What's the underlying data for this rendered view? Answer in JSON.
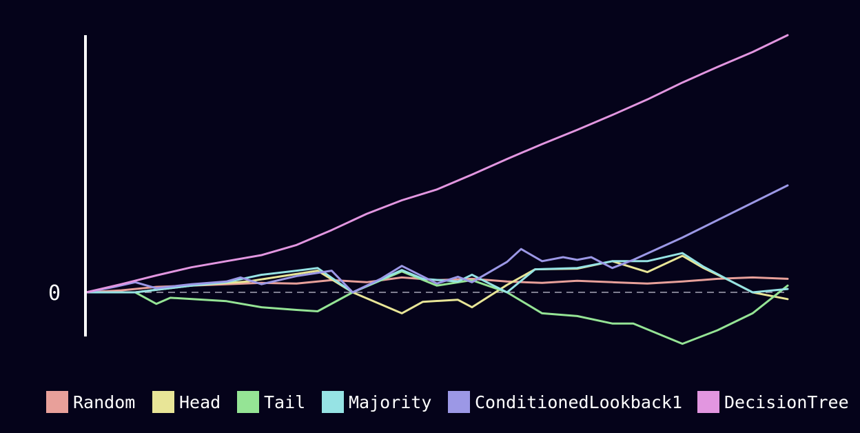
{
  "chart_data": {
    "type": "line",
    "title": "",
    "xlabel": "",
    "ylabel": "",
    "x_range": [
      0,
      100
    ],
    "ylim": [
      -8,
      46
    ],
    "y_ticks": [
      {
        "value": 0,
        "label": "0"
      }
    ],
    "zero_line": "dashed",
    "grid": false,
    "legend_position": "bottom",
    "series": [
      {
        "name": "Random",
        "color": "#e8a09a",
        "x": [
          0,
          5,
          10,
          15,
          20,
          25,
          30,
          35,
          40,
          45,
          50,
          55,
          60,
          65,
          70,
          75,
          80,
          85,
          90,
          95,
          100
        ],
        "y": [
          0,
          0.3,
          0.8,
          1.0,
          1.2,
          1.4,
          1.3,
          1.8,
          1.5,
          2.2,
          1.8,
          2.0,
          1.6,
          1.4,
          1.7,
          1.5,
          1.3,
          1.6,
          2.0,
          2.2,
          2.0
        ]
      },
      {
        "name": "Head",
        "color": "#e8e597",
        "x": [
          0,
          7,
          15,
          23,
          33,
          38,
          45,
          48,
          53,
          55,
          60,
          64,
          70,
          75,
          80,
          85,
          88,
          92,
          95,
          100
        ],
        "y": [
          0,
          0,
          1.0,
          1.6,
          3.2,
          0,
          -3.1,
          -1.4,
          -1.1,
          -2.2,
          1.1,
          3.4,
          3.5,
          4.6,
          3.0,
          5.4,
          3.6,
          1.6,
          0,
          -1.0
        ]
      },
      {
        "name": "Tail",
        "color": "#95e495",
        "x": [
          0,
          7,
          10,
          12,
          20,
          25,
          30,
          33,
          38,
          45,
          50,
          55,
          60,
          65,
          70,
          75,
          78,
          85,
          90,
          95,
          100
        ],
        "y": [
          0,
          0,
          -1.7,
          -0.8,
          -1.3,
          -2.2,
          -2.6,
          -2.8,
          0,
          3.1,
          1.0,
          1.8,
          0,
          -3.1,
          -3.5,
          -4.6,
          -4.6,
          -7.6,
          -5.6,
          -3.1,
          1.0
        ]
      },
      {
        "name": "Majority",
        "color": "#96e3e4",
        "x": [
          0,
          7,
          15,
          20,
          25,
          30,
          33,
          38,
          45,
          48,
          53,
          55,
          60,
          64,
          70,
          75,
          80,
          85,
          88,
          92,
          95,
          100
        ],
        "y": [
          0,
          0,
          1.0,
          1.5,
          2.6,
          3.2,
          3.6,
          0,
          3.3,
          2.0,
          1.6,
          2.6,
          0,
          3.4,
          3.6,
          4.6,
          4.6,
          5.8,
          3.8,
          1.6,
          0,
          0.5
        ]
      },
      {
        "name": "ConditionedLookback1",
        "color": "#9c98e6",
        "x": [
          0,
          4,
          7,
          10,
          15,
          20,
          22,
          25,
          30,
          35,
          38,
          42,
          45,
          50,
          53,
          55,
          60,
          62,
          65,
          68,
          70,
          72,
          75,
          78,
          85,
          100
        ],
        "y": [
          0,
          0.8,
          1.5,
          0.6,
          1.2,
          1.6,
          2.2,
          1.2,
          2.4,
          3.2,
          0,
          2.0,
          3.9,
          1.3,
          2.3,
          1.5,
          4.5,
          6.4,
          4.6,
          5.2,
          4.8,
          5.2,
          3.6,
          4.8,
          8.1,
          15.8
        ]
      },
      {
        "name": "DecisionTree",
        "color": "#e296e0",
        "x": [
          0,
          5,
          10,
          15,
          20,
          25,
          30,
          35,
          40,
          45,
          50,
          55,
          60,
          65,
          70,
          75,
          80,
          85,
          90,
          95,
          100
        ],
        "y": [
          0,
          1.2,
          2.5,
          3.7,
          4.6,
          5.5,
          7.0,
          9.2,
          11.6,
          13.6,
          15.2,
          17.4,
          19.7,
          21.9,
          24.0,
          26.2,
          28.5,
          31.0,
          33.3,
          35.5,
          38.0
        ]
      }
    ]
  }
}
